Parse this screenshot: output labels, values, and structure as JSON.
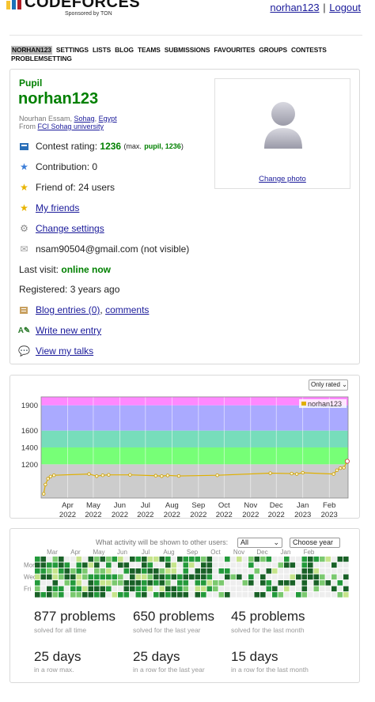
{
  "header": {
    "logo_text": "CODEFORCES",
    "logo_sub": "Sponsored by TON",
    "user_link": "norhan123",
    "separator": "|",
    "logout": "Logout"
  },
  "nav": [
    "NORHAN123",
    "SETTINGS",
    "LISTS",
    "BLOG",
    "TEAMS",
    "SUBMISSIONS",
    "FAVOURITES",
    "GROUPS",
    "CONTESTS",
    "PROBLEMSETTING"
  ],
  "profile": {
    "rank": "Pupil",
    "handle": "norhan123",
    "fullname_prefix": "Nourhan Essam,",
    "city": "Sohag",
    "comma": ",",
    "country": "Egypt",
    "from_prefix": "From",
    "organization": "FCI Sohag university",
    "contest_rating_label": "Contest rating:",
    "contest_rating_value": "1236",
    "max_prefix": "(max.",
    "max_rank": "pupil, 1236",
    "max_suffix": ")",
    "contribution": "Contribution: 0",
    "friend_of": "Friend of: 24 users",
    "my_friends": "My friends",
    "change_settings": "Change settings",
    "email": "nsam90504@gmail.com (not visible)",
    "last_visit_label": "Last visit:",
    "last_visit_value": "online now",
    "registered": "Registered: 3 years ago",
    "blog_entries": "Blog entries (0)",
    "comments": "comments",
    "write_new_entry": "Write new entry",
    "view_my_talks": "View my talks",
    "change_photo": "Change photo"
  },
  "rating_chart": {
    "filter": "Only rated",
    "legend": "norhan123",
    "y_ticks": [
      "1900",
      "1600",
      "1400",
      "1200"
    ],
    "months": [
      "Apr",
      "May",
      "Jun",
      "Jul",
      "Aug",
      "Sep",
      "Oct",
      "Nov",
      "Dec",
      "Jan",
      "Feb"
    ],
    "years": [
      "2022",
      "2022",
      "2022",
      "2022",
      "2022",
      "2022",
      "2022",
      "2022",
      "2022",
      "2023",
      "2023"
    ]
  },
  "chart_data": {
    "type": "line",
    "title": "",
    "xlabel": "",
    "ylabel": "",
    "ylim": [
      800,
      2000
    ],
    "series": [
      {
        "name": "norhan123",
        "x": [
          "2022-03-04",
          "2022-03-06",
          "2022-03-09",
          "2022-03-12",
          "2022-03-16",
          "2022-04-26",
          "2022-05-05",
          "2022-05-12",
          "2022-05-19",
          "2022-06-13",
          "2022-07-13",
          "2022-07-20",
          "2022-07-27",
          "2022-08-09",
          "2022-09-23",
          "2022-11-24",
          "2022-12-19",
          "2022-12-25",
          "2023-01-01",
          "2023-02-06",
          "2023-02-10",
          "2023-02-14",
          "2023-02-18",
          "2023-02-22"
        ],
        "y": [
          850,
          960,
          1030,
          1055,
          1070,
          1085,
          1060,
          1070,
          1075,
          1075,
          1065,
          1060,
          1068,
          1062,
          1070,
          1095,
          1090,
          1085,
          1100,
          1085,
          1130,
          1155,
          1160,
          1236
        ]
      }
    ],
    "bands": [
      {
        "rank": "newbie",
        "from": 800,
        "to": 1200,
        "color": "#cccccc"
      },
      {
        "rank": "pupil",
        "from": 1200,
        "to": 1400,
        "color": "#77ff77"
      },
      {
        "rank": "specialist",
        "from": 1400,
        "to": 1600,
        "color": "#77ddbb"
      },
      {
        "rank": "expert",
        "from": 1600,
        "to": 1900,
        "color": "#aaaaff"
      },
      {
        "rank": "candidate master",
        "from": 1900,
        "to": 2000,
        "color": "#ff88ff"
      }
    ]
  },
  "activity": {
    "question": "What activity will be shown to other users:",
    "scope_select": "All",
    "year_select": "Choose year",
    "months": [
      "Mar",
      "Apr",
      "May",
      "Jun",
      "Jul",
      "Aug",
      "Sep",
      "Oct",
      "Nov",
      "Dec",
      "Jan",
      "Feb"
    ],
    "day_labels": [
      "Mon",
      "Wed",
      "Fri"
    ],
    "stats": [
      {
        "big": "877 problems",
        "small": "solved for all time"
      },
      {
        "big": "650 problems",
        "small": "solved for the last year"
      },
      {
        "big": "45 problems",
        "small": "solved for the last month"
      },
      {
        "big": "25 days",
        "small": "in a row max."
      },
      {
        "big": "25 days",
        "small": "in a row for the last year"
      },
      {
        "big": "15 days",
        "small": "in a row for the last month"
      }
    ]
  },
  "colors": {
    "rank_green": "#008000",
    "link": "#1a1a9a",
    "rating_line": "#e0b000",
    "heat": [
      "#eeeeee",
      "#c6e48b",
      "#7bc96f",
      "#239a3b",
      "#196127"
    ]
  }
}
